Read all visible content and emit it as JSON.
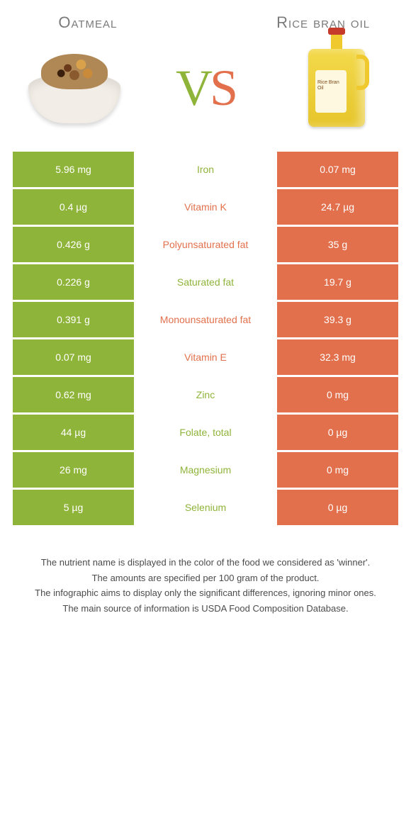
{
  "header": {
    "left": "Oatmeal",
    "right": "Rice bran oil"
  },
  "vs": {
    "v": "V",
    "s": "S"
  },
  "colors": {
    "green": "#8fb43a",
    "orange": "#e2704c",
    "white": "#ffffff",
    "row_gap": 3
  },
  "bottle_label": "Rice Bran Oil",
  "rows": [
    {
      "left": "5.96 mg",
      "nutrient": "Iron",
      "right": "0.07 mg",
      "winner": "left"
    },
    {
      "left": "0.4 µg",
      "nutrient": "Vitamin K",
      "right": "24.7 µg",
      "winner": "right"
    },
    {
      "left": "0.426 g",
      "nutrient": "Polyunsaturated fat",
      "right": "35 g",
      "winner": "right"
    },
    {
      "left": "0.226 g",
      "nutrient": "Saturated fat",
      "right": "19.7 g",
      "winner": "left"
    },
    {
      "left": "0.391 g",
      "nutrient": "Monounsaturated fat",
      "right": "39.3 g",
      "winner": "right"
    },
    {
      "left": "0.07 mg",
      "nutrient": "Vitamin E",
      "right": "32.3 mg",
      "winner": "right"
    },
    {
      "left": "0.62 mg",
      "nutrient": "Zinc",
      "right": "0 mg",
      "winner": "left"
    },
    {
      "left": "44 µg",
      "nutrient": "Folate, total",
      "right": "0 µg",
      "winner": "left"
    },
    {
      "left": "26 mg",
      "nutrient": "Magnesium",
      "right": "0 mg",
      "winner": "left"
    },
    {
      "left": "5 µg",
      "nutrient": "Selenium",
      "right": "0 µg",
      "winner": "left"
    }
  ],
  "footnotes": [
    "The nutrient name is displayed in the color of the food we considered as 'winner'.",
    "The amounts are specified per 100 gram of the product.",
    "The infographic aims to display only the significant differences, ignoring minor ones.",
    "The main source of information is USDA Food Composition Database."
  ]
}
